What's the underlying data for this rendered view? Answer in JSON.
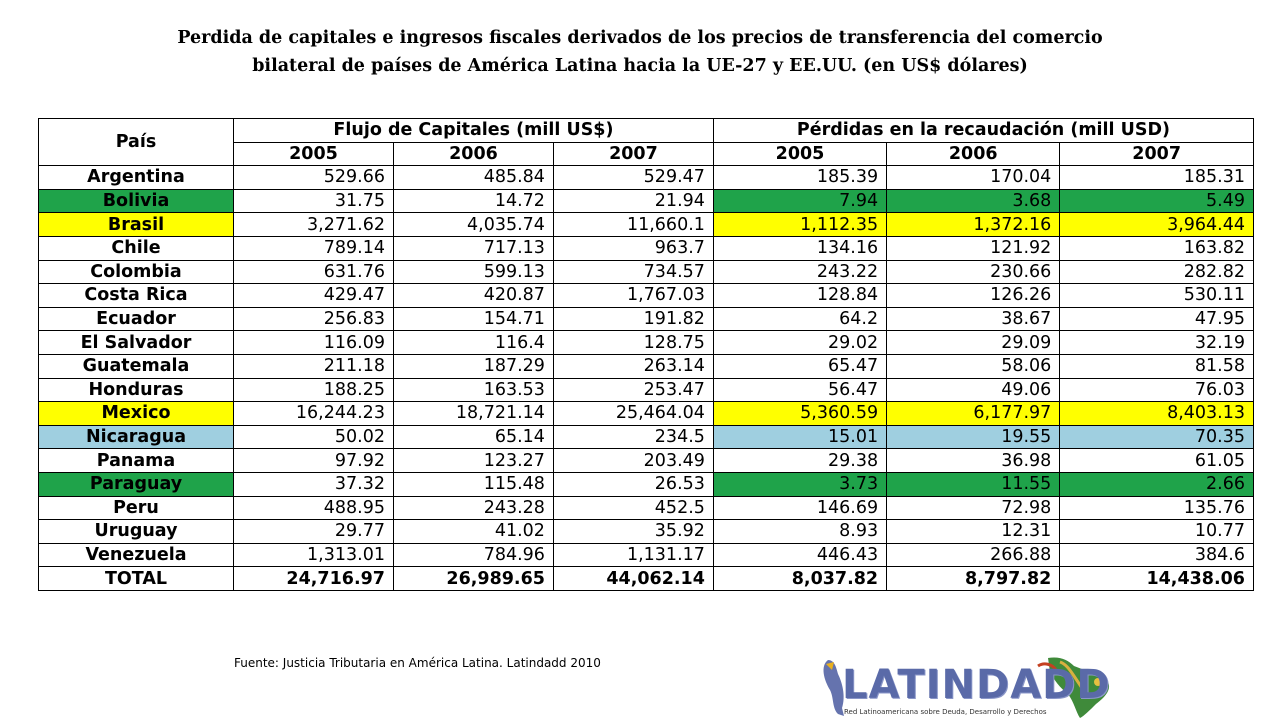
{
  "title": {
    "line1": "Perdida de capitales e ingresos fiscales derivados de los precios de transferencia del comercio",
    "line2": "bilateral de países de América Latina hacia la UE-27 y EE.UU. (en US$ dólares)"
  },
  "table": {
    "pais_header": "País",
    "group1_header": "Flujo de Capitales (mill US$)",
    "group2_header": "Pérdidas en la recaudación (mill USD)",
    "years": [
      "2005",
      "2006",
      "2007",
      "2005",
      "2006",
      "2007"
    ],
    "rows": [
      {
        "country": "Argentina",
        "values": [
          "529.66",
          "485.84",
          "529.47",
          "185.39",
          "170.04",
          "185.31"
        ],
        "country_bg": "#ffffff",
        "loss_bg": "#ffffff"
      },
      {
        "country": "Bolivia",
        "values": [
          "31.75",
          "14.72",
          "21.94",
          "7.94",
          "3.68",
          "5.49"
        ],
        "country_bg": "#1fa34a",
        "loss_bg": "#1fa34a"
      },
      {
        "country": "Brasil",
        "values": [
          "3,271.62",
          "4,035.74",
          "11,660.1",
          "1,112.35",
          "1,372.16",
          "3,964.44"
        ],
        "country_bg": "#ffff00",
        "loss_bg": "#ffff00"
      },
      {
        "country": "Chile",
        "values": [
          "789.14",
          "717.13",
          "963.7",
          "134.16",
          "121.92",
          "163.82"
        ],
        "country_bg": "#ffffff",
        "loss_bg": "#ffffff"
      },
      {
        "country": "Colombia",
        "values": [
          "631.76",
          "599.13",
          "734.57",
          "243.22",
          "230.66",
          "282.82"
        ],
        "country_bg": "#ffffff",
        "loss_bg": "#ffffff"
      },
      {
        "country": "Costa Rica",
        "values": [
          "429.47",
          "420.87",
          "1,767.03",
          "128.84",
          "126.26",
          "530.11"
        ],
        "country_bg": "#ffffff",
        "loss_bg": "#ffffff"
      },
      {
        "country": "Ecuador",
        "values": [
          "256.83",
          "154.71",
          "191.82",
          "64.2",
          "38.67",
          "47.95"
        ],
        "country_bg": "#ffffff",
        "loss_bg": "#ffffff"
      },
      {
        "country": "El Salvador",
        "values": [
          "116.09",
          "116.4",
          "128.75",
          "29.02",
          "29.09",
          "32.19"
        ],
        "country_bg": "#ffffff",
        "loss_bg": "#ffffff"
      },
      {
        "country": "Guatemala",
        "values": [
          "211.18",
          "187.29",
          "263.14",
          "65.47",
          "58.06",
          "81.58"
        ],
        "country_bg": "#ffffff",
        "loss_bg": "#ffffff"
      },
      {
        "country": "Honduras",
        "values": [
          "188.25",
          "163.53",
          "253.47",
          "56.47",
          "49.06",
          "76.03"
        ],
        "country_bg": "#ffffff",
        "loss_bg": "#ffffff"
      },
      {
        "country": "Mexico",
        "values": [
          "16,244.23",
          "18,721.14",
          "25,464.04",
          "5,360.59",
          "6,177.97",
          "8,403.13"
        ],
        "country_bg": "#ffff00",
        "loss_bg": "#ffff00"
      },
      {
        "country": "Nicaragua",
        "values": [
          "50.02",
          "65.14",
          "234.5",
          "15.01",
          "19.55",
          "70.35"
        ],
        "country_bg": "#9fcfe0",
        "loss_bg": "#9fcfe0"
      },
      {
        "country": "Panama",
        "values": [
          "97.92",
          "123.27",
          "203.49",
          "29.38",
          "36.98",
          "61.05"
        ],
        "country_bg": "#ffffff",
        "loss_bg": "#ffffff"
      },
      {
        "country": "Paraguay",
        "values": [
          "37.32",
          "115.48",
          "26.53",
          "3.73",
          "11.55",
          "2.66"
        ],
        "country_bg": "#1fa34a",
        "loss_bg": "#1fa34a"
      },
      {
        "country": "Peru",
        "values": [
          "488.95",
          "243.28",
          "452.5",
          "146.69",
          "72.98",
          "135.76"
        ],
        "country_bg": "#ffffff",
        "loss_bg": "#ffffff"
      },
      {
        "country": "Uruguay",
        "values": [
          "29.77",
          "41.02",
          "35.92",
          "8.93",
          "12.31",
          "10.77"
        ],
        "country_bg": "#ffffff",
        "loss_bg": "#ffffff"
      },
      {
        "country": "Venezuela",
        "values": [
          "1,313.01",
          "784.96",
          "1,131.17",
          "446.43",
          "266.88",
          "384.6"
        ],
        "country_bg": "#ffffff",
        "loss_bg": "#ffffff"
      }
    ],
    "total": {
      "country": "TOTAL",
      "values": [
        "24,716.97",
        "26,989.65",
        "44,062.14",
        "8,037.82",
        "8,797.82",
        "14,438.06"
      ]
    }
  },
  "source": "Fuente: Justicia Tributaria en América Latina. Latindadd 2010",
  "logo": {
    "name": "LATINDADD",
    "tagline": "Red Latinoamericana sobre Deuda, Desarrollo y Derechos"
  }
}
